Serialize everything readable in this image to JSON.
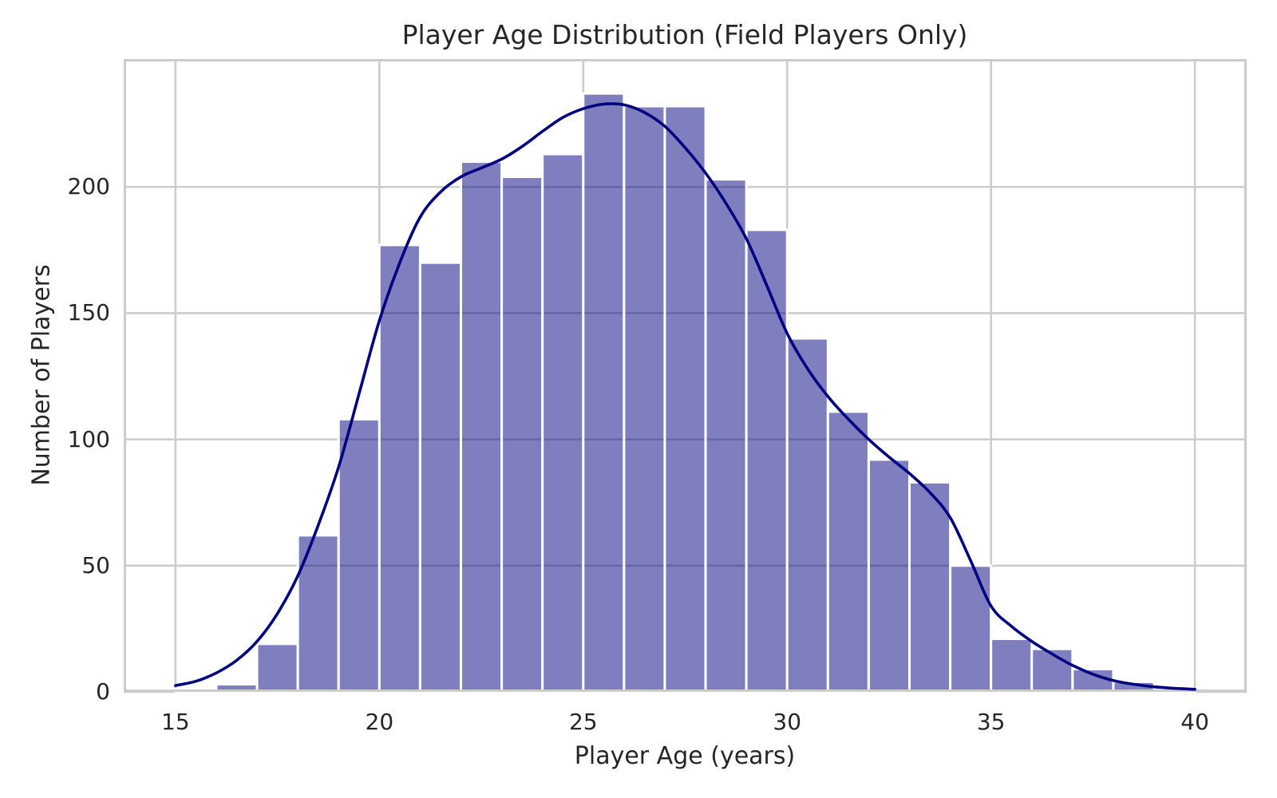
{
  "figure": {
    "background": "#ffffff"
  },
  "chart_data": {
    "type": "bar",
    "subtype": "histogram_with_kde",
    "title": "Player Age Distribution (Field Players Only)",
    "xlabel": "Player Age (years)",
    "ylabel": "Number of Players",
    "grid": true,
    "legend": false,
    "xlim": [
      13.73,
      41.27
    ],
    "ylim": [
      0,
      250.65
    ],
    "x_ticks": [
      {
        "value": 15,
        "label": "15"
      },
      {
        "value": 20,
        "label": "20"
      },
      {
        "value": 25,
        "label": "25"
      },
      {
        "value": 30,
        "label": "30"
      },
      {
        "value": 35,
        "label": "35"
      },
      {
        "value": 40,
        "label": "40"
      }
    ],
    "y_ticks": [
      {
        "value": 0,
        "label": "0"
      },
      {
        "value": 50,
        "label": "50"
      },
      {
        "value": 100,
        "label": "100"
      },
      {
        "value": 150,
        "label": "150"
      },
      {
        "value": 200,
        "label": "200"
      }
    ],
    "bins": {
      "start": 15,
      "width": 1,
      "counts": [
        1,
        3,
        19,
        62,
        108,
        177,
        170,
        210,
        204,
        213,
        237,
        232,
        232,
        203,
        183,
        140,
        111,
        92,
        83,
        50,
        21,
        17,
        9,
        4,
        1
      ]
    },
    "kde_points": [
      [
        15,
        2.5
      ],
      [
        15.5,
        4.2
      ],
      [
        16,
        7.5
      ],
      [
        16.5,
        12.5
      ],
      [
        17,
        20
      ],
      [
        17.5,
        31
      ],
      [
        18,
        46
      ],
      [
        18.5,
        66
      ],
      [
        19,
        89
      ],
      [
        19.5,
        118
      ],
      [
        20,
        147
      ],
      [
        20.5,
        170
      ],
      [
        21,
        188
      ],
      [
        21.5,
        198
      ],
      [
        22,
        204
      ],
      [
        22.5,
        207.5
      ],
      [
        23,
        211
      ],
      [
        23.5,
        216
      ],
      [
        24,
        222
      ],
      [
        24.5,
        227.5
      ],
      [
        25,
        231
      ],
      [
        25.5,
        232.8
      ],
      [
        26,
        232.5
      ],
      [
        26.5,
        229.5
      ],
      [
        27,
        224
      ],
      [
        27.5,
        215.5
      ],
      [
        28,
        205.5
      ],
      [
        28.5,
        193.5
      ],
      [
        29,
        179.5
      ],
      [
        29.5,
        161
      ],
      [
        30,
        142
      ],
      [
        30.5,
        128
      ],
      [
        31,
        117
      ],
      [
        31.5,
        108
      ],
      [
        32,
        100
      ],
      [
        32.5,
        93
      ],
      [
        33,
        86.5
      ],
      [
        33.5,
        79
      ],
      [
        34,
        69
      ],
      [
        34.5,
        52
      ],
      [
        35,
        34
      ],
      [
        35.5,
        26
      ],
      [
        36,
        20
      ],
      [
        36.5,
        15
      ],
      [
        37,
        10.5
      ],
      [
        37.5,
        7
      ],
      [
        38,
        4.5
      ],
      [
        38.5,
        3
      ],
      [
        39,
        2
      ],
      [
        39.5,
        1.4
      ],
      [
        40,
        1
      ]
    ],
    "colors": {
      "bar_fill": "#000080",
      "bar_fill_opacity": 0.5,
      "bar_edge": "#ffffff",
      "kde_line": "#000080",
      "grid_line": "#cccccc",
      "axis_edge": "#cccccc",
      "text": "#262626",
      "background": "#ffffff"
    }
  }
}
